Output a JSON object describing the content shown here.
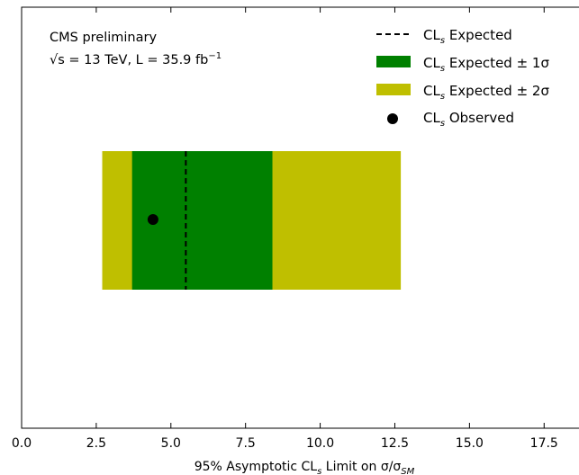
{
  "chart_data": {
    "type": "bar",
    "orientation": "horizontal",
    "annotation": {
      "line1": "CMS preliminary",
      "line2_sqrt": "√s",
      "line2_rest": " = 13 TeV, L = 35.9 fb",
      "line2_sup": "−1"
    },
    "xlabel": {
      "prefix": "95% Asymptotic CL",
      "sub": "s",
      "mid": " Limit on σ/σ",
      "sub2": "SM"
    },
    "xlim": [
      0,
      19.0
    ],
    "xticks": [
      0.0,
      2.5,
      5.0,
      7.5,
      10.0,
      12.5,
      15.0,
      17.5
    ],
    "xtick_labels": [
      "0.0",
      "2.5",
      "5.0",
      "7.5",
      "10.0",
      "12.5",
      "15.0",
      "17.5"
    ],
    "grid": false,
    "legend_position": "top-right",
    "series": {
      "expected_median": 5.5,
      "expected_1sigma": [
        3.7,
        8.4
      ],
      "expected_2sigma": [
        2.7,
        12.7
      ],
      "observed": 4.4
    },
    "legend": [
      {
        "key": "expected",
        "base": "CL",
        "sub": "s",
        "rest": " Expected"
      },
      {
        "key": "one_sigma",
        "base": "CL",
        "sub": "s",
        "rest": " Expected ± 1σ"
      },
      {
        "key": "two_sigma",
        "base": "CL",
        "sub": "s",
        "rest": " Expected ± 2σ"
      },
      {
        "key": "observed",
        "base": "CL",
        "sub": "s",
        "rest": " Observed"
      }
    ],
    "colors": {
      "one_sigma": "#008000",
      "two_sigma": "#bfbf00",
      "expected_line": "#000000",
      "observed": "#000000"
    }
  }
}
